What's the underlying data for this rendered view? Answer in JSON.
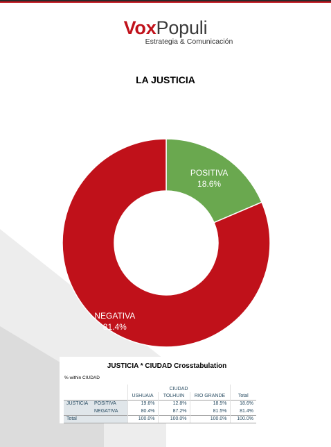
{
  "brand": {
    "logo_vox": "Vox",
    "logo_populi": "Populi",
    "tagline": "Estrategia & Comunicación",
    "accent_color": "#c0111a",
    "top_bar_color": "#c0111a"
  },
  "page": {
    "title": "LA JUSTICIA"
  },
  "chart_data": {
    "type": "pie",
    "donut": true,
    "title": "LA JUSTICIA",
    "categories": [
      "POSITIVA",
      "NEGATIVA"
    ],
    "values": [
      18.6,
      81.4
    ],
    "value_labels": [
      "18.6%",
      "81.4%"
    ],
    "colors": [
      "#6aa84f",
      "#c0111a"
    ],
    "legend": "none"
  },
  "crosstab": {
    "title": "JUSTICIA  * CIUDAD Crosstabulation",
    "note": "% within CIUDAD",
    "group_header": "CIUDAD",
    "columns": [
      "USHUAIA",
      "TOLHUIN",
      "RIO GRANDE",
      "Total"
    ],
    "row_var": "JUSTICIA",
    "rows": [
      {
        "label": "POSITIVA",
        "values": [
          "19.6%",
          "12.8%",
          "18.5%",
          "18.6%"
        ]
      },
      {
        "label": "NEGATIVA",
        "values": [
          "80.4%",
          "87.2%",
          "81.5%",
          "81.4%"
        ]
      }
    ],
    "total": {
      "label": "Total",
      "values": [
        "100.0%",
        "100.0%",
        "100.0%",
        "100.0%"
      ]
    }
  }
}
